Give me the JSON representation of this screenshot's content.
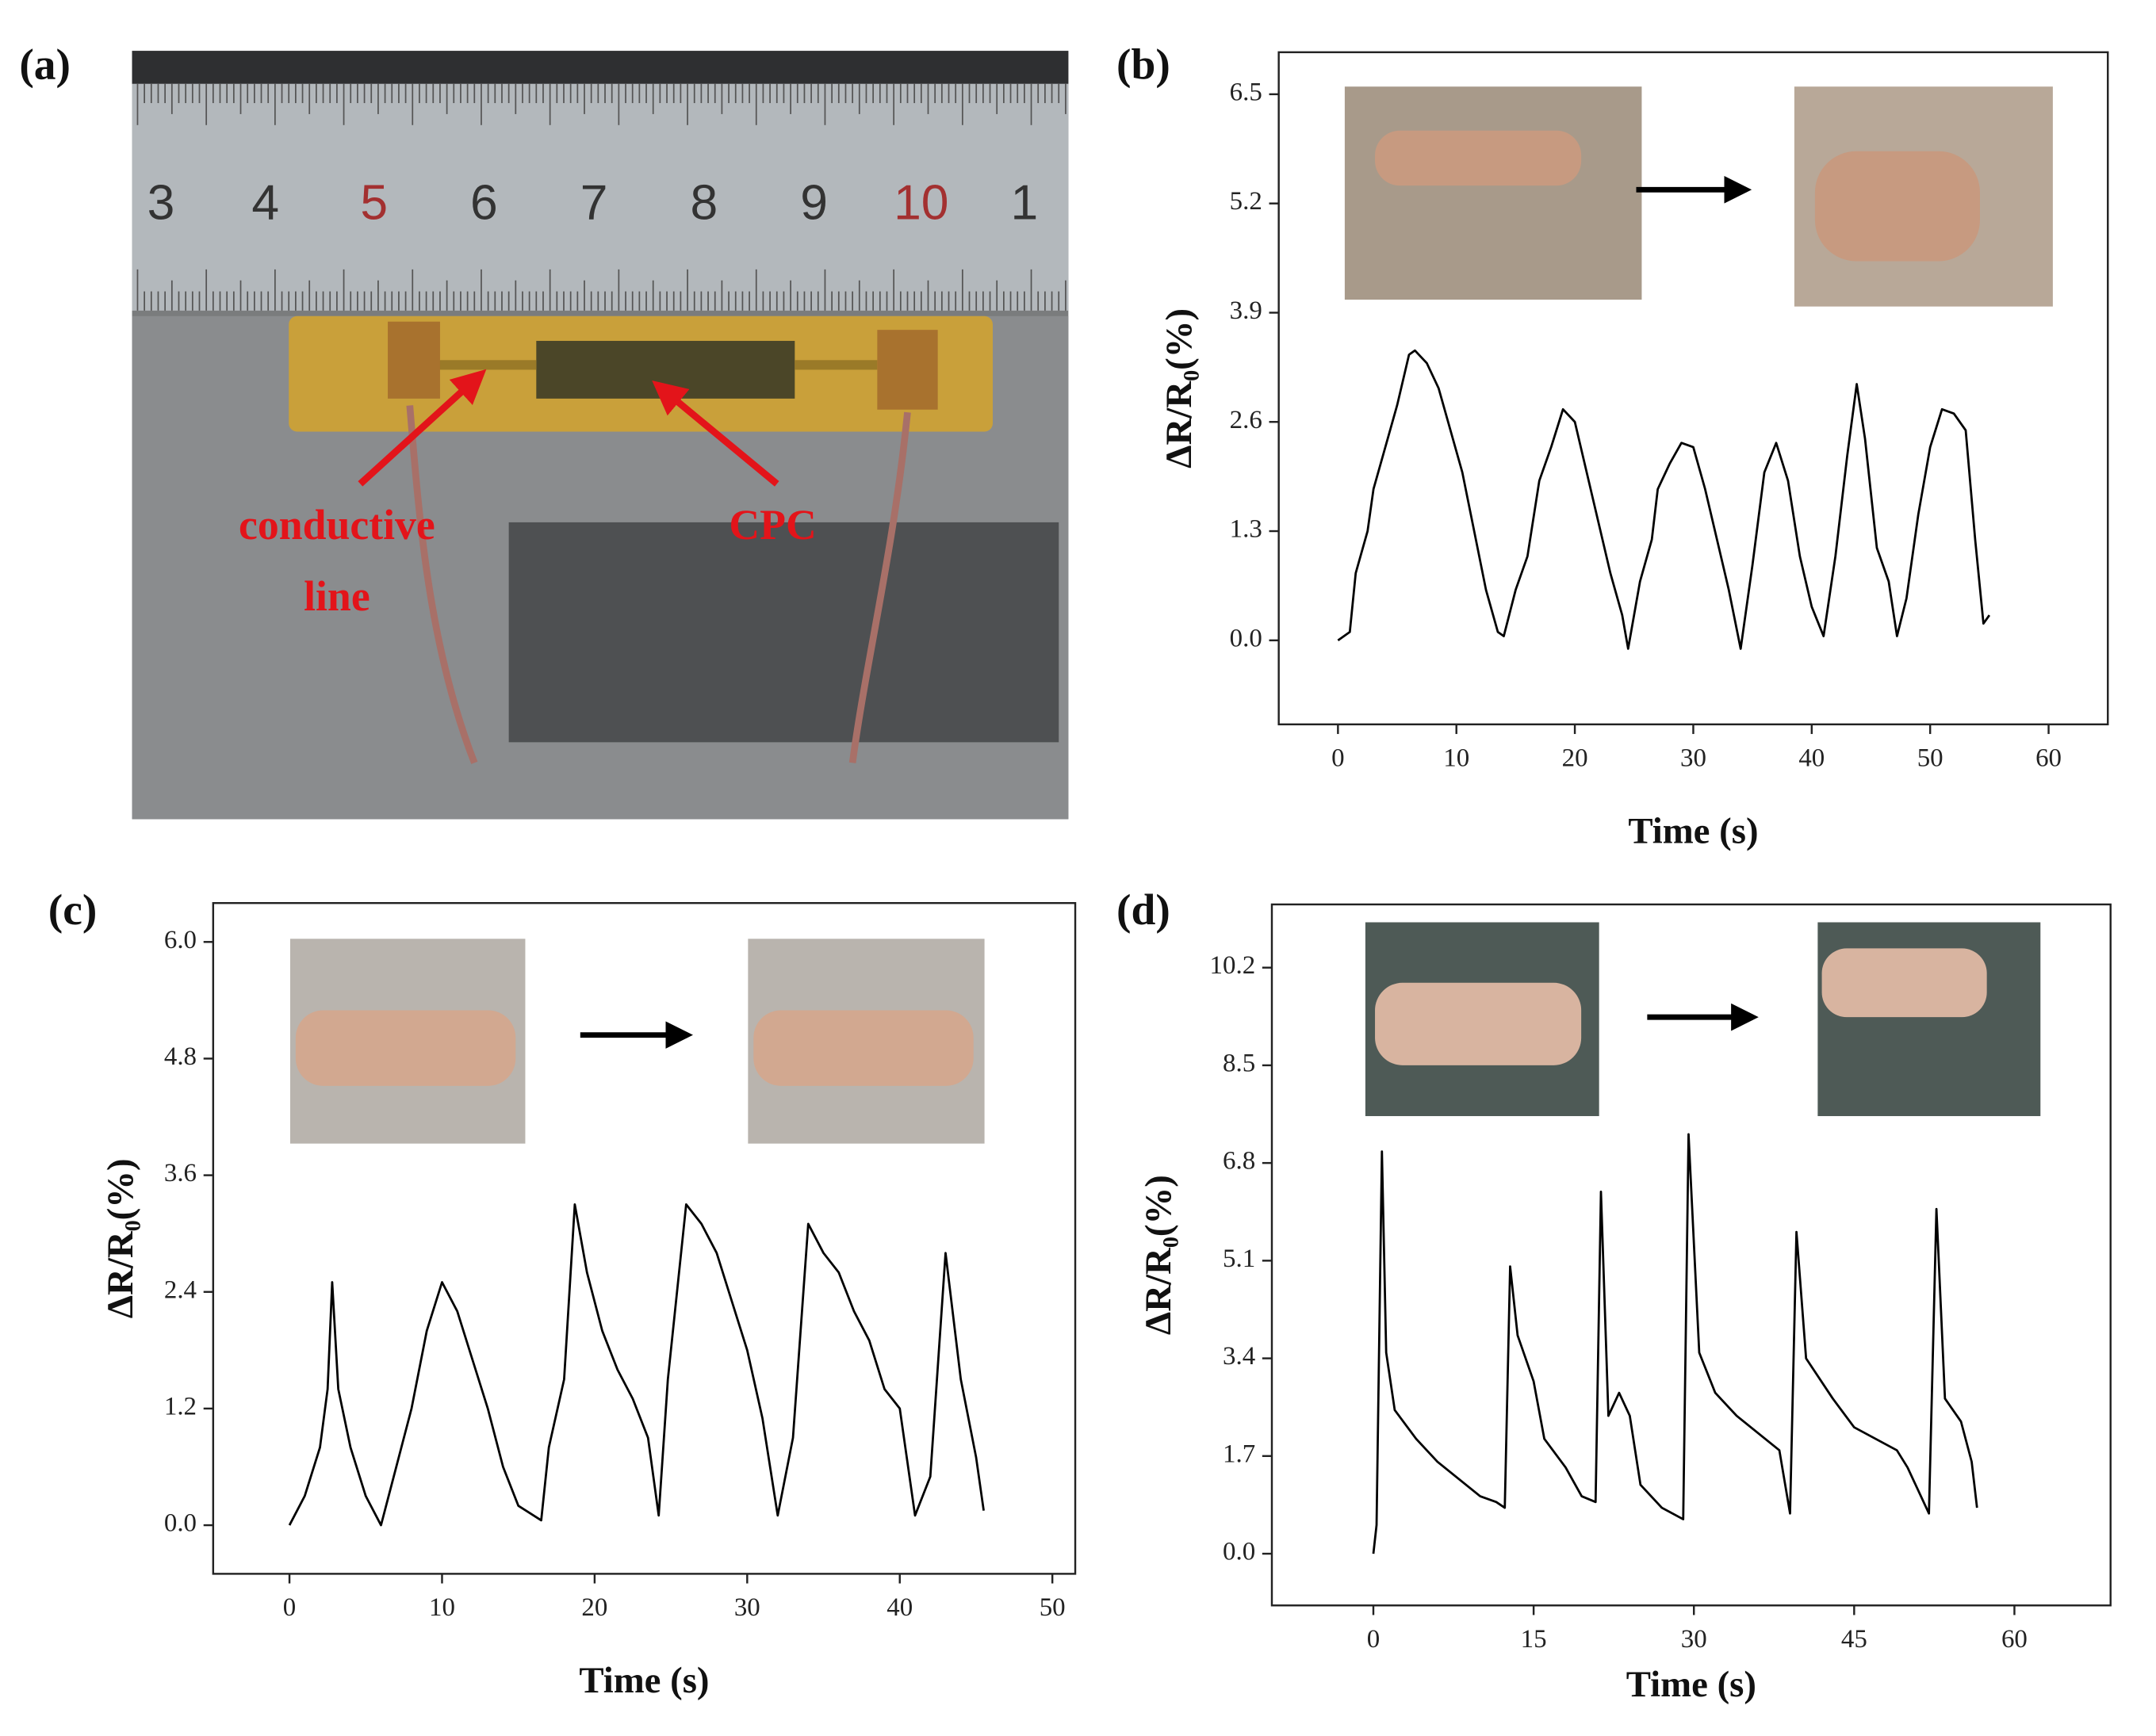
{
  "photo": {
    "panel_label": "(a)",
    "ruler_numbers": [
      "3",
      "4",
      "5",
      "6",
      "7",
      "8",
      "9",
      "10",
      "1"
    ],
    "annotation_lines": [
      "conductive",
      "line"
    ],
    "annotation_cpc": "CPC"
  },
  "chart_data": [
    {
      "type": "line",
      "panel_label": "(b)",
      "x_label": "Time (s)",
      "y_label": "ΔR/R₀(%)",
      "color": "#000000",
      "xlim": [
        -5,
        65
      ],
      "ylim": [
        -1,
        7
      ],
      "xticks": [
        0,
        10,
        20,
        30,
        40,
        50,
        60
      ],
      "yticks": [
        {
          "value": 0,
          "label": "0.0"
        },
        1.3,
        2.6,
        3.9,
        5.2,
        6.5
      ],
      "x": [
        0,
        1,
        1.5,
        2.5,
        3,
        4,
        5,
        6,
        6.5,
        7.5,
        8.5,
        9.5,
        10.5,
        11.5,
        12.5,
        13.5,
        14,
        15,
        16,
        17,
        18,
        19,
        20,
        21,
        22,
        23,
        24,
        24.5,
        25.5,
        26.5,
        27,
        28,
        29,
        30,
        31,
        32,
        33,
        34,
        35,
        36,
        37,
        38,
        39,
        40,
        41,
        42,
        43,
        43.8,
        44.5,
        45.5,
        46.5,
        47.2,
        48,
        49,
        50,
        51,
        52,
        53,
        53.8,
        54.5,
        55
      ],
      "values": [
        0,
        0.1,
        0.8,
        1.3,
        1.8,
        2.3,
        2.8,
        3.4,
        3.45,
        3.3,
        3.0,
        2.5,
        2.0,
        1.3,
        0.6,
        0.1,
        0.05,
        0.6,
        1.0,
        1.9,
        2.3,
        2.75,
        2.6,
        2.0,
        1.4,
        0.8,
        0.3,
        -0.1,
        0.7,
        1.2,
        1.8,
        2.1,
        2.35,
        2.3,
        1.8,
        1.2,
        0.6,
        -0.1,
        0.9,
        2.0,
        2.35,
        1.9,
        1.0,
        0.4,
        0.05,
        1.0,
        2.2,
        3.05,
        2.4,
        1.1,
        0.7,
        0.05,
        0.5,
        1.5,
        2.3,
        2.75,
        2.7,
        2.5,
        1.2,
        0.2,
        0.3
      ]
    },
    {
      "type": "line",
      "panel_label": "(c)",
      "x_label": "Time (s)",
      "y_label": "ΔR/R₀(%)",
      "color": "#000000",
      "xlim": [
        -5,
        51.5
      ],
      "ylim": [
        -0.5,
        6.4
      ],
      "xticks": [
        0,
        10,
        20,
        30,
        40,
        50
      ],
      "yticks": [
        {
          "value": 0,
          "label": "0.0"
        },
        1.2,
        2.4,
        3.6,
        4.8,
        {
          "value": 6,
          "label": "6.0"
        }
      ],
      "x": [
        0,
        1,
        2,
        2.5,
        2.8,
        3.2,
        4,
        5,
        6,
        7,
        8,
        9,
        10,
        11,
        12,
        13,
        14,
        15,
        16.5,
        17,
        18,
        18.7,
        19.5,
        20.5,
        21.5,
        22.5,
        23.5,
        24.2,
        24.8,
        26,
        27,
        28,
        29,
        30,
        31,
        32,
        33,
        34,
        35,
        36,
        37,
        38,
        39,
        40,
        41,
        42,
        43,
        44,
        45,
        45.5
      ],
      "values": [
        0,
        0.3,
        0.8,
        1.4,
        2.5,
        1.4,
        0.8,
        0.3,
        0,
        0.6,
        1.2,
        2.0,
        2.5,
        2.2,
        1.7,
        1.2,
        0.6,
        0.2,
        0.05,
        0.8,
        1.5,
        3.3,
        2.6,
        2.0,
        1.6,
        1.3,
        0.9,
        0.1,
        1.5,
        3.3,
        3.1,
        2.8,
        2.3,
        1.8,
        1.1,
        0.1,
        0.9,
        3.1,
        2.8,
        2.6,
        2.2,
        1.9,
        1.4,
        1.2,
        0.1,
        0.5,
        2.8,
        1.5,
        0.7,
        0.15
      ]
    },
    {
      "type": "line",
      "panel_label": "(d)",
      "x_label": "Time (s)",
      "y_label": "ΔR/R₀(%)",
      "color": "#000000",
      "xlim": [
        -9.5,
        69
      ],
      "ylim": [
        -0.9,
        11.3
      ],
      "xticks": [
        0,
        15,
        30,
        45,
        60
      ],
      "yticks": [
        {
          "value": 0,
          "label": "0.0"
        },
        1.7,
        3.4,
        5.1,
        6.8,
        8.5,
        10.2
      ],
      "x": [
        0,
        0.3,
        0.8,
        1.2,
        2,
        4,
        6,
        8,
        10,
        11.5,
        12.3,
        12.8,
        13.5,
        15,
        16,
        18,
        19.5,
        20.8,
        21.3,
        22,
        23,
        24,
        25,
        27,
        29,
        29.5,
        30.5,
        32,
        34,
        36,
        38,
        39,
        39.6,
        40.5,
        43,
        45,
        47,
        49,
        50,
        52,
        52.7,
        53.5,
        55,
        56,
        56.5
      ],
      "values": [
        0,
        0.5,
        7.0,
        3.5,
        2.5,
        2.0,
        1.6,
        1.3,
        1.0,
        0.9,
        0.8,
        5.0,
        3.8,
        3.0,
        2.0,
        1.5,
        1.0,
        0.9,
        6.3,
        2.4,
        2.8,
        2.4,
        1.2,
        0.8,
        0.6,
        7.3,
        3.5,
        2.8,
        2.4,
        2.1,
        1.8,
        0.7,
        5.6,
        3.4,
        2.7,
        2.2,
        2.0,
        1.8,
        1.5,
        0.7,
        6.0,
        2.7,
        2.3,
        1.6,
        0.8
      ]
    }
  ]
}
